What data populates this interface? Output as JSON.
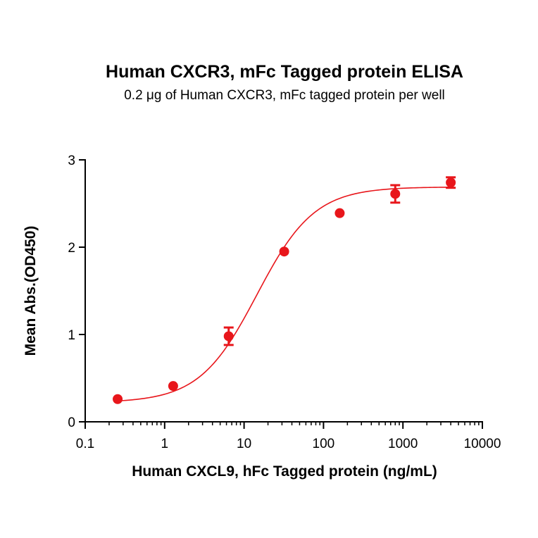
{
  "chart_data": {
    "type": "scatter",
    "title": "Human CXCR3, mFc Tagged protein ELISA",
    "subtitle": "0.2 μg of Human CXCR3, mFc tagged protein per well",
    "xlabel": "Human CXCL9, hFc Tagged protein  (ng/mL)",
    "ylabel": "Mean Abs.(OD450)",
    "xscale": "log",
    "xlim": [
      0.1,
      10000
    ],
    "ylim": [
      0,
      3
    ],
    "x_ticks": [
      0.1,
      1,
      10,
      100,
      1000,
      10000
    ],
    "x_tick_labels": [
      "0.1",
      "1",
      "10",
      "100",
      "1000",
      "10000"
    ],
    "y_ticks": [
      0,
      1,
      2,
      3
    ],
    "y_tick_labels": [
      "0",
      "1",
      "2",
      "3"
    ],
    "grid": false,
    "color": "#e8161b",
    "series": [
      {
        "points": [
          {
            "x": 0.256,
            "y": 0.26,
            "err": 0.0
          },
          {
            "x": 1.28,
            "y": 0.41,
            "err": 0.0
          },
          {
            "x": 6.4,
            "y": 0.98,
            "err": 0.1
          },
          {
            "x": 32,
            "y": 1.95,
            "err": 0.0
          },
          {
            "x": 160,
            "y": 2.39,
            "err": 0.0
          },
          {
            "x": 800,
            "y": 2.61,
            "err": 0.1
          },
          {
            "x": 4000,
            "y": 2.74,
            "err": 0.06
          }
        ],
        "fit": {
          "model": "4PL",
          "bottom": 0.22,
          "top": 2.69,
          "ec50": 14.5,
          "hill": 1.2
        }
      }
    ]
  }
}
